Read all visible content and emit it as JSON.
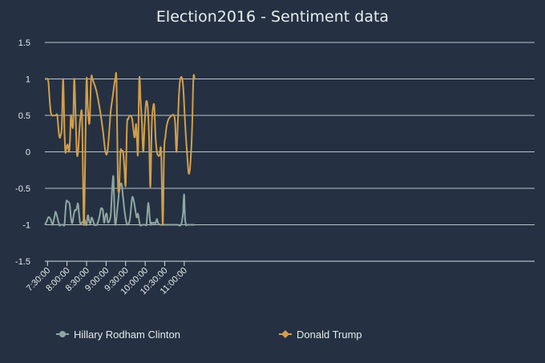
{
  "chart_data": {
    "type": "line",
    "title": "Election2016 - Sentiment data",
    "ylim": [
      -1.5,
      1.5
    ],
    "yticks": [
      "1.5",
      "1",
      "0.5",
      "0",
      "-0.5",
      "-1",
      "-1.5"
    ],
    "yticks_values": [
      1.5,
      1,
      0.5,
      0,
      -0.5,
      -1,
      -1.5
    ],
    "xlim_minutes": [
      446,
      1198
    ],
    "xticks": [
      "7:30:00",
      "8:00:00",
      "8:30:00",
      "9:00:00",
      "9:30:00",
      "10:00:00",
      "10:30:00",
      "11:00:00"
    ],
    "xticks_minutes": [
      450,
      480,
      510,
      540,
      570,
      600,
      630,
      660
    ],
    "grid": true,
    "legend_position": "bottom",
    "colors": {
      "background": "#253142",
      "clinton": "#8fa7a1",
      "trump": "#d39f4a"
    },
    "series": [
      {
        "name": "Hillary Rodham Clinton",
        "x_minutes": [
          446,
          449,
          451,
          453,
          455,
          456.5,
          458,
          460,
          461.5,
          463,
          468,
          470,
          472,
          474,
          476,
          477.5,
          479,
          481,
          484,
          486,
          488,
          490,
          492,
          494,
          495.5,
          497,
          500,
          503,
          505,
          507,
          508.5,
          510,
          512,
          514,
          516,
          518,
          522,
          524,
          526,
          528,
          530,
          532,
          533.5,
          535,
          537,
          539,
          541,
          543,
          547,
          549,
          551,
          552,
          554,
          558,
          560,
          562,
          564,
          566,
          568.5,
          571,
          573,
          576,
          578,
          580,
          582,
          585,
          587,
          589,
          592,
          595,
          597,
          600,
          602,
          603,
          605,
          607,
          608.5,
          610,
          612,
          614,
          616,
          618,
          620,
          623,
          627,
          632,
          637,
          641,
          645,
          650,
          655,
          658,
          659,
          660,
          661,
          662.5,
          664,
          668,
          672,
          676
        ],
        "y": [
          -1,
          -0.95,
          -0.9,
          -0.9,
          -0.93,
          -0.97,
          -1,
          -0.92,
          -0.86,
          -0.83,
          -1,
          -1,
          -1,
          -1,
          -1,
          -0.82,
          -0.68,
          -0.68,
          -0.72,
          -0.9,
          -0.98,
          -0.88,
          -0.8,
          -0.8,
          -0.75,
          -0.72,
          -0.97,
          -0.97,
          -0.95,
          -0.93,
          -0.98,
          -1,
          -0.87,
          -0.95,
          -0.98,
          -0.9,
          -1,
          -1,
          -1,
          -0.95,
          -0.88,
          -0.78,
          -0.78,
          -0.8,
          -0.97,
          -0.88,
          -0.85,
          -0.97,
          -0.87,
          -0.55,
          -0.33,
          -0.55,
          -1,
          -0.72,
          -0.55,
          -0.45,
          -0.45,
          -0.62,
          -0.82,
          -0.96,
          -1,
          -0.95,
          -0.8,
          -0.63,
          -0.65,
          -0.8,
          -0.9,
          -0.85,
          -1,
          -1,
          -1,
          -1,
          -1,
          -0.88,
          -0.7,
          -0.9,
          -1,
          -0.97,
          -0.98,
          -0.97,
          -0.98,
          -0.92,
          -0.98,
          -1,
          -1,
          -1,
          -1,
          -1,
          -1,
          -1,
          -1,
          -0.85,
          -0.65,
          -0.6,
          -0.88,
          -1,
          -1,
          -1,
          -1,
          -1
        ]
      },
      {
        "name": "Donald Trump",
        "x_minutes": [
          446,
          448,
          450,
          451.5,
          453,
          455,
          457,
          460,
          463,
          465,
          467,
          468.5,
          470,
          472,
          474,
          476,
          477.5,
          479,
          481,
          483,
          484.5,
          486,
          488,
          489.5,
          491,
          493,
          495,
          497,
          499,
          501,
          503,
          504.5,
          506,
          508,
          510,
          512,
          514.5,
          517,
          519,
          521,
          523,
          526,
          531,
          535,
          539,
          542,
          545,
          547,
          550,
          554,
          556,
          558,
          560,
          562,
          564,
          566,
          568,
          570,
          572,
          574,
          577,
          580,
          582,
          584,
          586,
          587.5,
          589,
          591,
          593,
          595,
          597,
          599,
          601.5,
          604,
          606,
          608,
          610,
          612,
          614,
          616,
          618,
          620,
          622,
          624.5,
          627,
          629,
          631,
          633,
          636,
          641,
          644,
          646,
          648,
          650,
          652,
          654,
          657,
          659,
          661,
          663,
          665,
          667,
          669.5,
          672,
          674,
          676
        ],
        "y": [
          1,
          1,
          1,
          0.95,
          0.75,
          0.55,
          0.5,
          0.5,
          0.5,
          0.5,
          0.3,
          0.2,
          0.22,
          0.35,
          1,
          0.3,
          0,
          0.05,
          0.1,
          0,
          0.15,
          0.5,
          0.35,
          0.4,
          1,
          0.55,
          0,
          0,
          0.3,
          0.5,
          0.5,
          -0.3,
          -1,
          0,
          1,
          0.6,
          0.4,
          1,
          1,
          0.95,
          0.9,
          0.8,
          0.55,
          0.3,
          0,
          0,
          0.3,
          0.55,
          0.75,
          1,
          0.95,
          -0.35,
          -0.5,
          0,
          0,
          0,
          -0.2,
          -0.45,
          0.35,
          0.45,
          0.5,
          0.45,
          0.3,
          0.2,
          0.38,
          0.15,
          0,
          1,
          0.7,
          0.4,
          0,
          0.35,
          0.68,
          0.6,
          0.2,
          -0.48,
          0.35,
          0.6,
          0.62,
          0.2,
          0,
          -0.05,
          -0.05,
          0,
          -1,
          0,
          0.2,
          0.35,
          0.45,
          0.5,
          0.5,
          0.4,
          0,
          0.35,
          0.8,
          1,
          1,
          0.8,
          0.45,
          0.15,
          -0.1,
          -0.3,
          -0.15,
          0.3,
          1,
          1
        ]
      }
    ]
  }
}
